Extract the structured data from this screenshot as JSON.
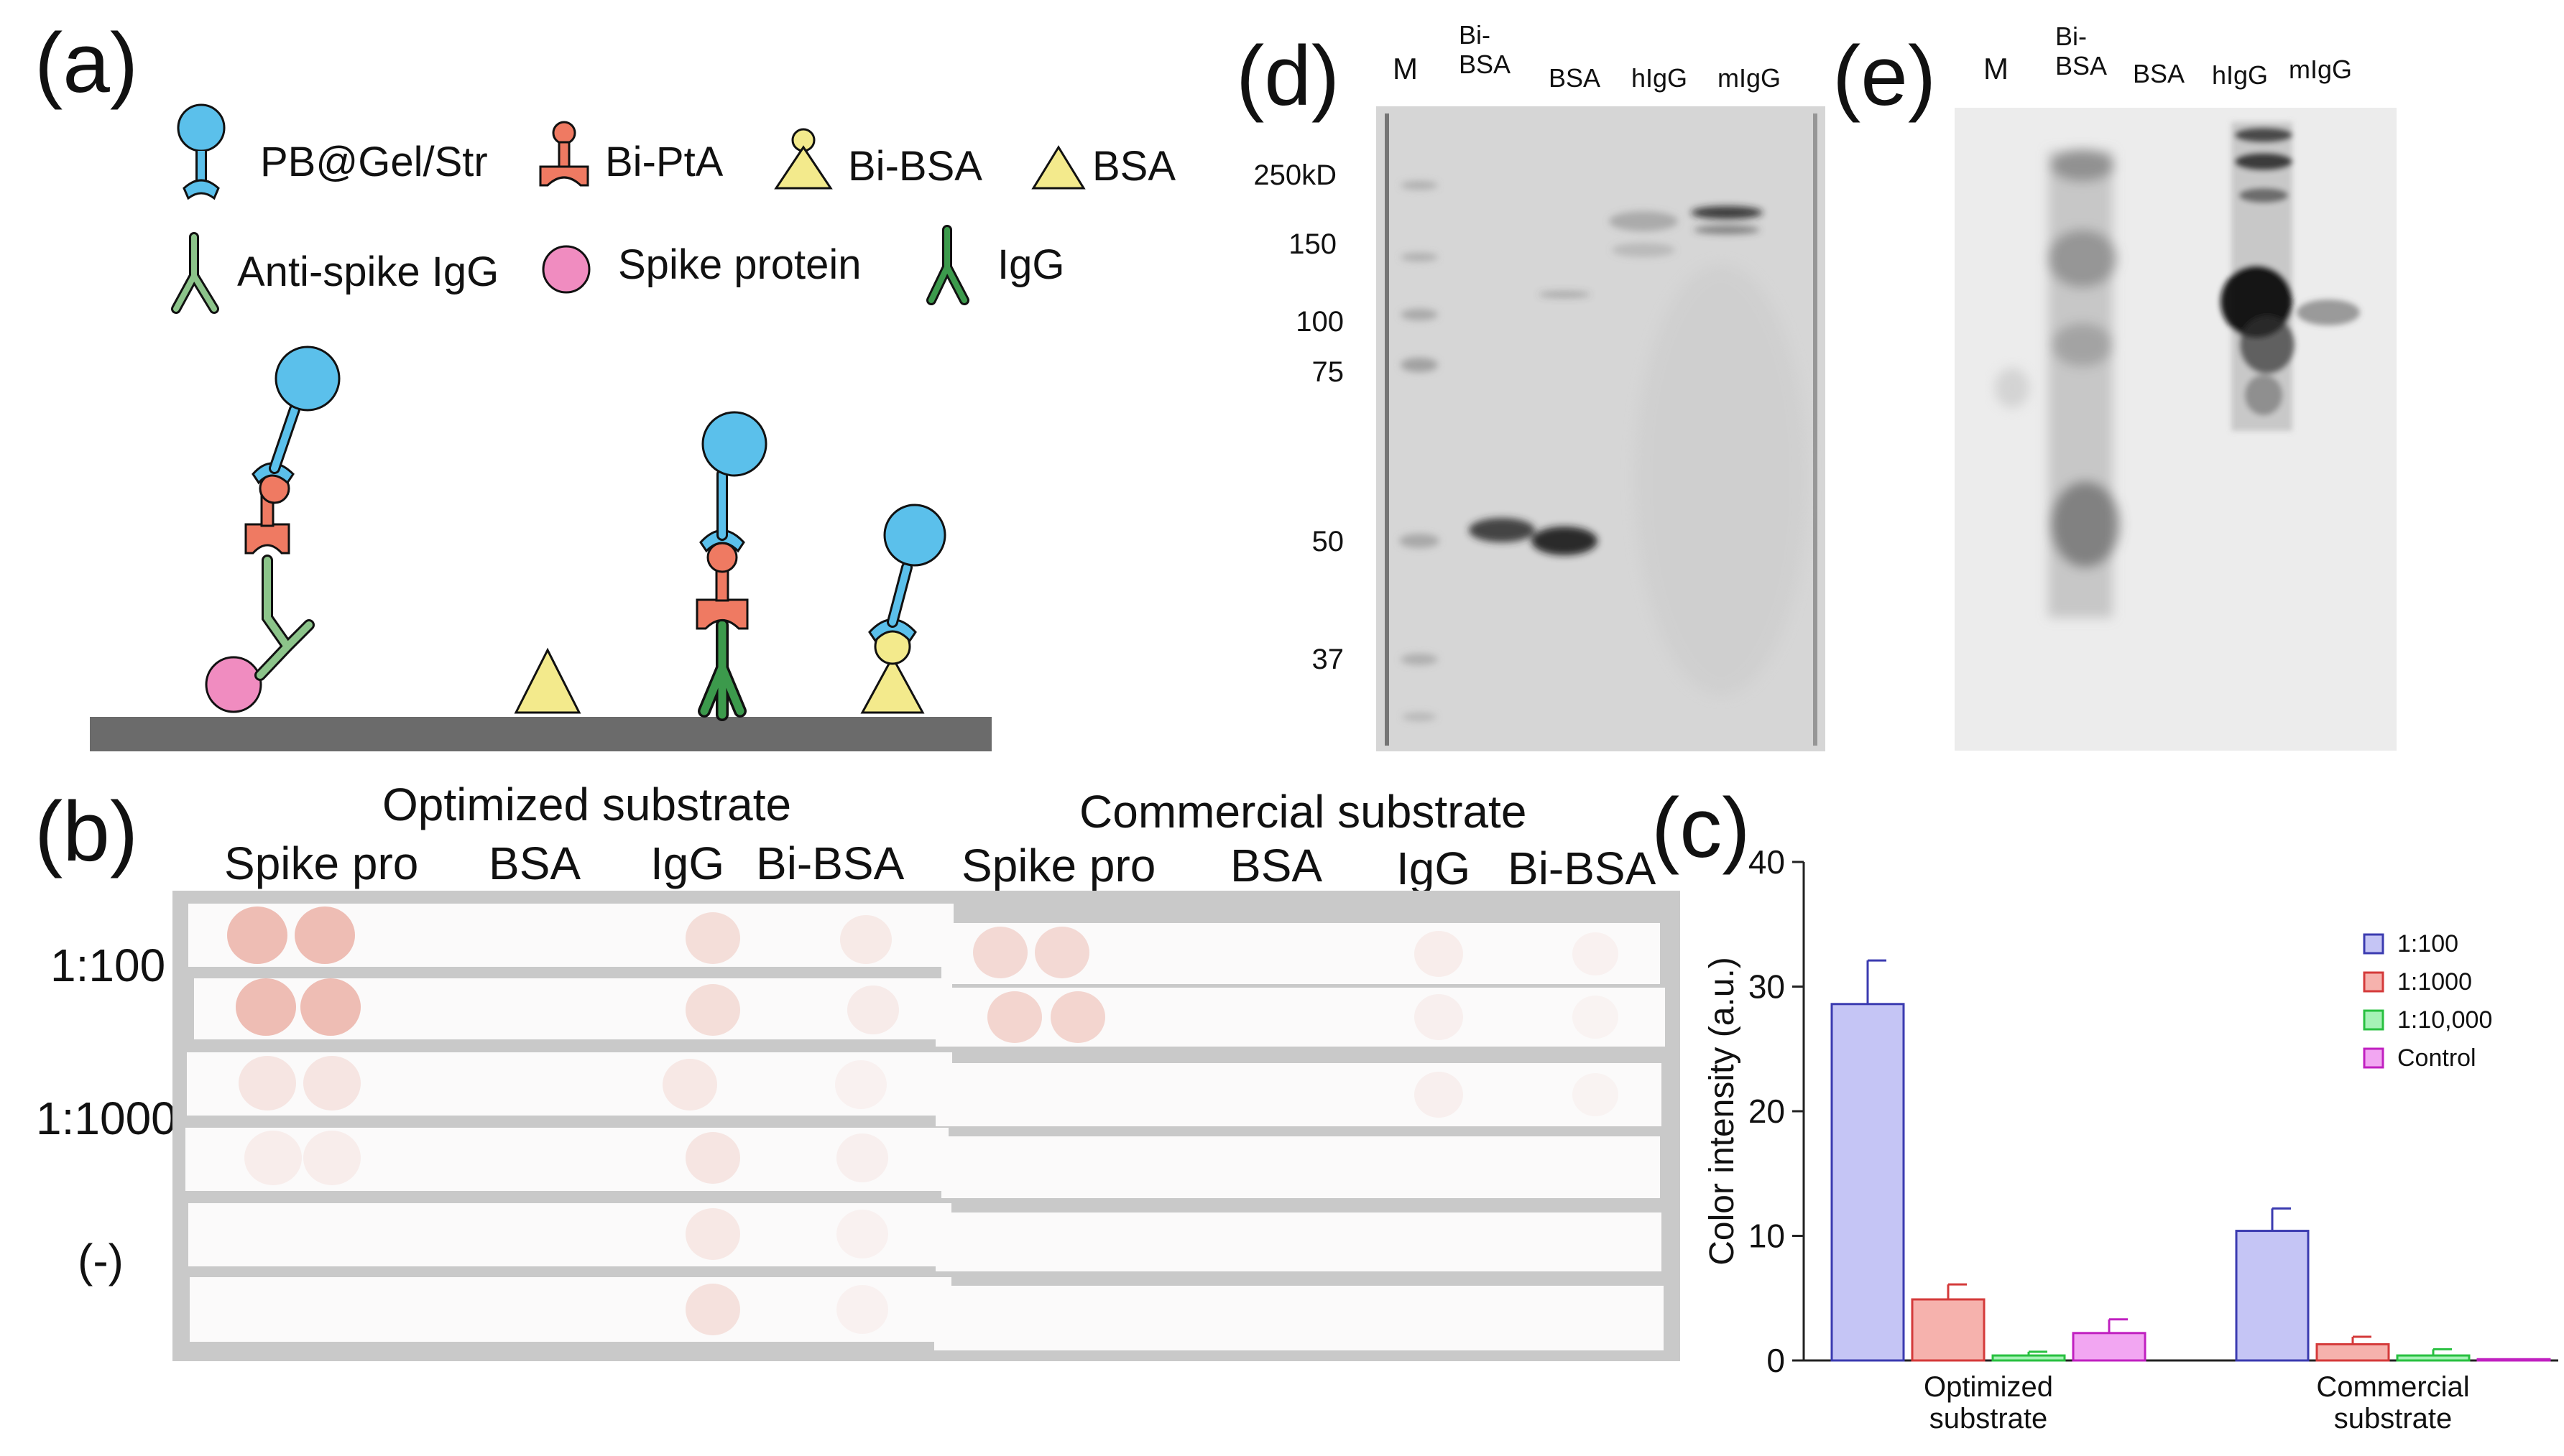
{
  "panels": {
    "a": "(a)",
    "b": "(b)",
    "c": "(c)",
    "d": "(d)",
    "e": "(e)"
  },
  "panel_a": {
    "legend": {
      "pb_gel_str": "PB@Gel/Str",
      "bi_pta": "Bi-PtA",
      "bi_bsa": "Bi-BSA",
      "bsa": "BSA",
      "anti_spike_igg": "Anti-spike IgG",
      "spike_protein": "Spike protein",
      "igg": "IgG"
    },
    "colors": {
      "pb": "#5bc0eb",
      "pta": "#ef7a62",
      "bsa": "#f3ea8c",
      "anti_igg": "#8cc48a",
      "spike": "#f08cc0",
      "igg": "#3c9a4c",
      "substrate": "#6b6b6b"
    }
  },
  "panel_b": {
    "titles": {
      "optimized": "Optimized substrate",
      "commercial": "Commercial substrate"
    },
    "columns": [
      "Spike pro",
      "BSA",
      "IgG",
      "Bi-BSA"
    ],
    "rows": [
      "1:100",
      "1:1000",
      "(-)"
    ]
  },
  "panel_d": {
    "lanes": [
      "M",
      "Bi-\nBSA",
      "BSA",
      "hIgG",
      "mIgG"
    ],
    "mw": [
      "250kD",
      "150",
      "100",
      "75",
      "50",
      "37"
    ]
  },
  "panel_e": {
    "lanes": [
      "M",
      "Bi-\nBSA",
      "BSA",
      "hIgG",
      "mIgG"
    ]
  },
  "chart_data": {
    "type": "bar",
    "categories": [
      "Optimized\nsubstrate",
      "Commercial\nsubstrate"
    ],
    "series": [
      {
        "name": "1:100",
        "values": [
          28.6,
          10.4
        ],
        "errors": [
          3.5,
          1.8
        ],
        "fill": "#c5c5f5",
        "stroke": "#3b3bb0"
      },
      {
        "name": "1:1000",
        "values": [
          4.9,
          1.3
        ],
        "errors": [
          1.2,
          0.6
        ],
        "fill": "#f6b2ad",
        "stroke": "#d43a3a"
      },
      {
        "name": "1:10,000",
        "values": [
          0.4,
          0.4
        ],
        "errors": [
          0.3,
          0.5
        ],
        "fill": "#a6f2b6",
        "stroke": "#28c040"
      },
      {
        "name": "Control",
        "values": [
          2.2,
          0.1
        ],
        "errors": [
          1.1,
          0.0
        ],
        "fill": "#f2a6f2",
        "stroke": "#c020c0"
      }
    ],
    "ylabel": "Color intensity (a.u.)",
    "xlabel": "",
    "ylim": [
      0,
      40
    ],
    "yticks": [
      0,
      10,
      20,
      30,
      40
    ],
    "legend": "top-right",
    "grid": false
  }
}
